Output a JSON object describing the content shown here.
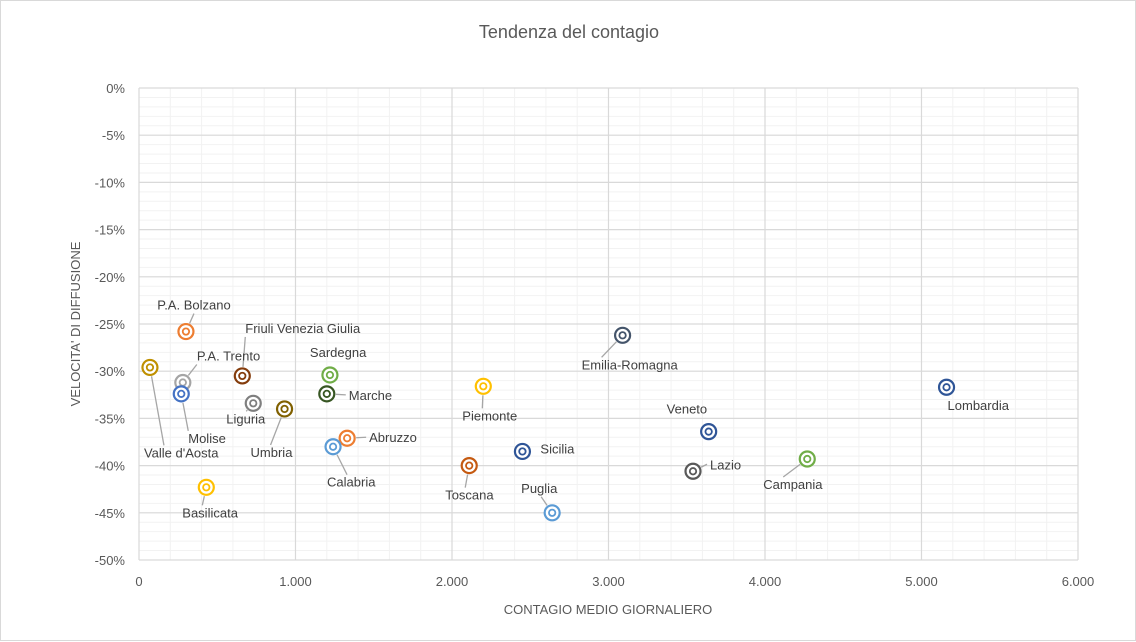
{
  "chart_data": {
    "type": "scatter",
    "title": "Tendenza del contagio",
    "xlabel": "CONTAGIO MEDIO GIORNALIERO",
    "ylabel": "VELOCITA' DI DIFFUSIONE",
    "xlim": [
      0,
      6000
    ],
    "ylim": [
      -0.5,
      0
    ],
    "x_ticks": [
      "0",
      "1.000",
      "2.000",
      "3.000",
      "4.000",
      "5.000",
      "6.000"
    ],
    "y_ticks": [
      "0%",
      "-5%",
      "-10%",
      "-15%",
      "-20%",
      "-25%",
      "-30%",
      "-35%",
      "-40%",
      "-45%",
      "-50%"
    ],
    "grid": true,
    "legend": "none",
    "points": [
      {
        "label": "P.A. Bolzano",
        "x": 300,
        "y": -0.258,
        "color": "#ed7d31"
      },
      {
        "label": "Friuli Venezia Giulia",
        "x": 660,
        "y": -0.305,
        "color": "#843c0c"
      },
      {
        "label": "P.A. Trento",
        "x": 280,
        "y": -0.312,
        "color": "#a5a5a5"
      },
      {
        "label": "Valle d'Aosta",
        "x": 70,
        "y": -0.296,
        "color": "#bf9000"
      },
      {
        "label": "Molise",
        "x": 270,
        "y": -0.324,
        "color": "#4472c4"
      },
      {
        "label": "Liguria",
        "x": 730,
        "y": -0.334,
        "color": "#7f7f7f"
      },
      {
        "label": "Umbria",
        "x": 930,
        "y": -0.34,
        "color": "#806000"
      },
      {
        "label": "Sardegna",
        "x": 1220,
        "y": -0.304,
        "color": "#70ad47"
      },
      {
        "label": "Marche",
        "x": 1200,
        "y": -0.324,
        "color": "#375623"
      },
      {
        "label": "Abruzzo",
        "x": 1330,
        "y": -0.371,
        "color": "#ed7d31"
      },
      {
        "label": "Calabria",
        "x": 1240,
        "y": -0.38,
        "color": "#5b9bd5"
      },
      {
        "label": "Basilicata",
        "x": 430,
        "y": -0.423,
        "color": "#ffc000"
      },
      {
        "label": "Toscana",
        "x": 2110,
        "y": -0.4,
        "color": "#c55a11"
      },
      {
        "label": "Piemonte",
        "x": 2200,
        "y": -0.316,
        "color": "#ffc000"
      },
      {
        "label": "Sicilia",
        "x": 2450,
        "y": -0.385,
        "color": "#2f5597"
      },
      {
        "label": "Puglia",
        "x": 2640,
        "y": -0.45,
        "color": "#5b9bd5"
      },
      {
        "label": "Emilia-Romagna",
        "x": 3090,
        "y": -0.262,
        "color": "#44546a"
      },
      {
        "label": "Veneto",
        "x": 3640,
        "y": -0.364,
        "color": "#2f5597"
      },
      {
        "label": "Lazio",
        "x": 3540,
        "y": -0.406,
        "color": "#595959"
      },
      {
        "label": "Campania",
        "x": 4270,
        "y": -0.393,
        "color": "#70ad47"
      },
      {
        "label": "Lombardia",
        "x": 5160,
        "y": -0.317,
        "color": "#2f5597"
      }
    ]
  }
}
